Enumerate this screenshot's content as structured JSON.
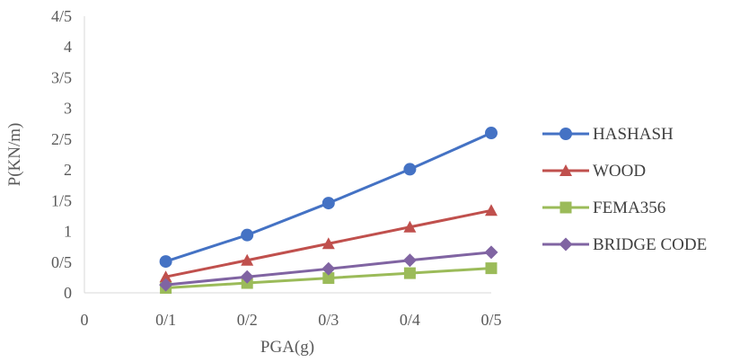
{
  "chart_data": {
    "type": "line",
    "title": "",
    "xlabel": "PGA(g)",
    "ylabel": "P(KN/m)",
    "x_tick_labels": [
      "0",
      "0/1",
      "0/2",
      "0/3",
      "0/4",
      "0/5"
    ],
    "y_tick_labels": [
      "0",
      "0/5",
      "1",
      "1/5",
      "2",
      "2/5",
      "3",
      "3/5",
      "4",
      "4/5"
    ],
    "x": [
      0.1,
      0.2,
      0.3,
      0.4,
      0.5
    ],
    "xlim": [
      0,
      0.5
    ],
    "ylim": [
      0,
      4.5
    ],
    "grid": false,
    "legend_position": "right",
    "series": [
      {
        "name": "HASHASH",
        "color": "#4472C4",
        "marker": "circle",
        "values": [
          0.51,
          0.94,
          1.46,
          2.01,
          2.6
        ]
      },
      {
        "name": "WOOD",
        "color": "#C0504D",
        "marker": "triangle",
        "values": [
          0.26,
          0.53,
          0.8,
          1.07,
          1.34
        ]
      },
      {
        "name": "FEMA356",
        "color": "#9BBB59",
        "marker": "square",
        "values": [
          0.08,
          0.16,
          0.24,
          0.32,
          0.4
        ]
      },
      {
        "name": "BRIDGE CODE",
        "color": "#8064A2",
        "marker": "diamond",
        "values": [
          0.13,
          0.26,
          0.39,
          0.53,
          0.66
        ]
      }
    ]
  }
}
